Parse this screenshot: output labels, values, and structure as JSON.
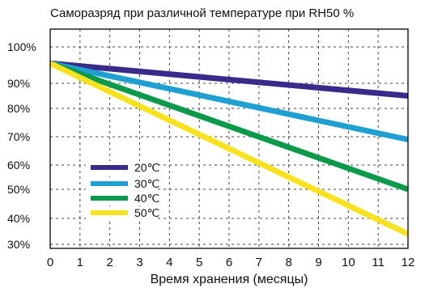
{
  "chart_data": {
    "type": "line",
    "title": "Саморазряд при различной температуре  при RH50 %",
    "xlabel": "Время хранения (месяцы)",
    "ylabel": "",
    "x_ticks": [
      "0",
      "1",
      "2",
      "3",
      "4",
      "5",
      "6",
      "7",
      "8",
      "9",
      "10",
      "11",
      "12"
    ],
    "y_ticks": [
      {
        "label": "100%",
        "value": 100
      },
      {
        "label": "90%",
        "value": 90
      },
      {
        "label": "80%",
        "value": 80
      },
      {
        "label": "70%",
        "value": 70
      },
      {
        "label": "60%",
        "value": 60
      },
      {
        "label": "50%",
        "value": 50
      },
      {
        "label": "40%",
        "value": 40
      },
      {
        "label": "30%",
        "value": 30
      }
    ],
    "xlim": [
      0,
      12
    ],
    "ylim": [
      30,
      100
    ],
    "grid": true,
    "legend_position": "lower-left",
    "series": [
      {
        "name": "20℃",
        "color": "#3b2a8c",
        "x": [
          0,
          12
        ],
        "y": [
          95.5,
          85
        ]
      },
      {
        "name": "30℃",
        "color": "#1fa0d2",
        "x": [
          0,
          12
        ],
        "y": [
          95.5,
          69
        ]
      },
      {
        "name": "40℃",
        "color": "#0b9a4a",
        "x": [
          0,
          12
        ],
        "y": [
          95.5,
          50
        ]
      },
      {
        "name": "50℃",
        "color": "#f8e21e",
        "x": [
          0,
          12
        ],
        "y": [
          95.5,
          34
        ]
      }
    ]
  }
}
